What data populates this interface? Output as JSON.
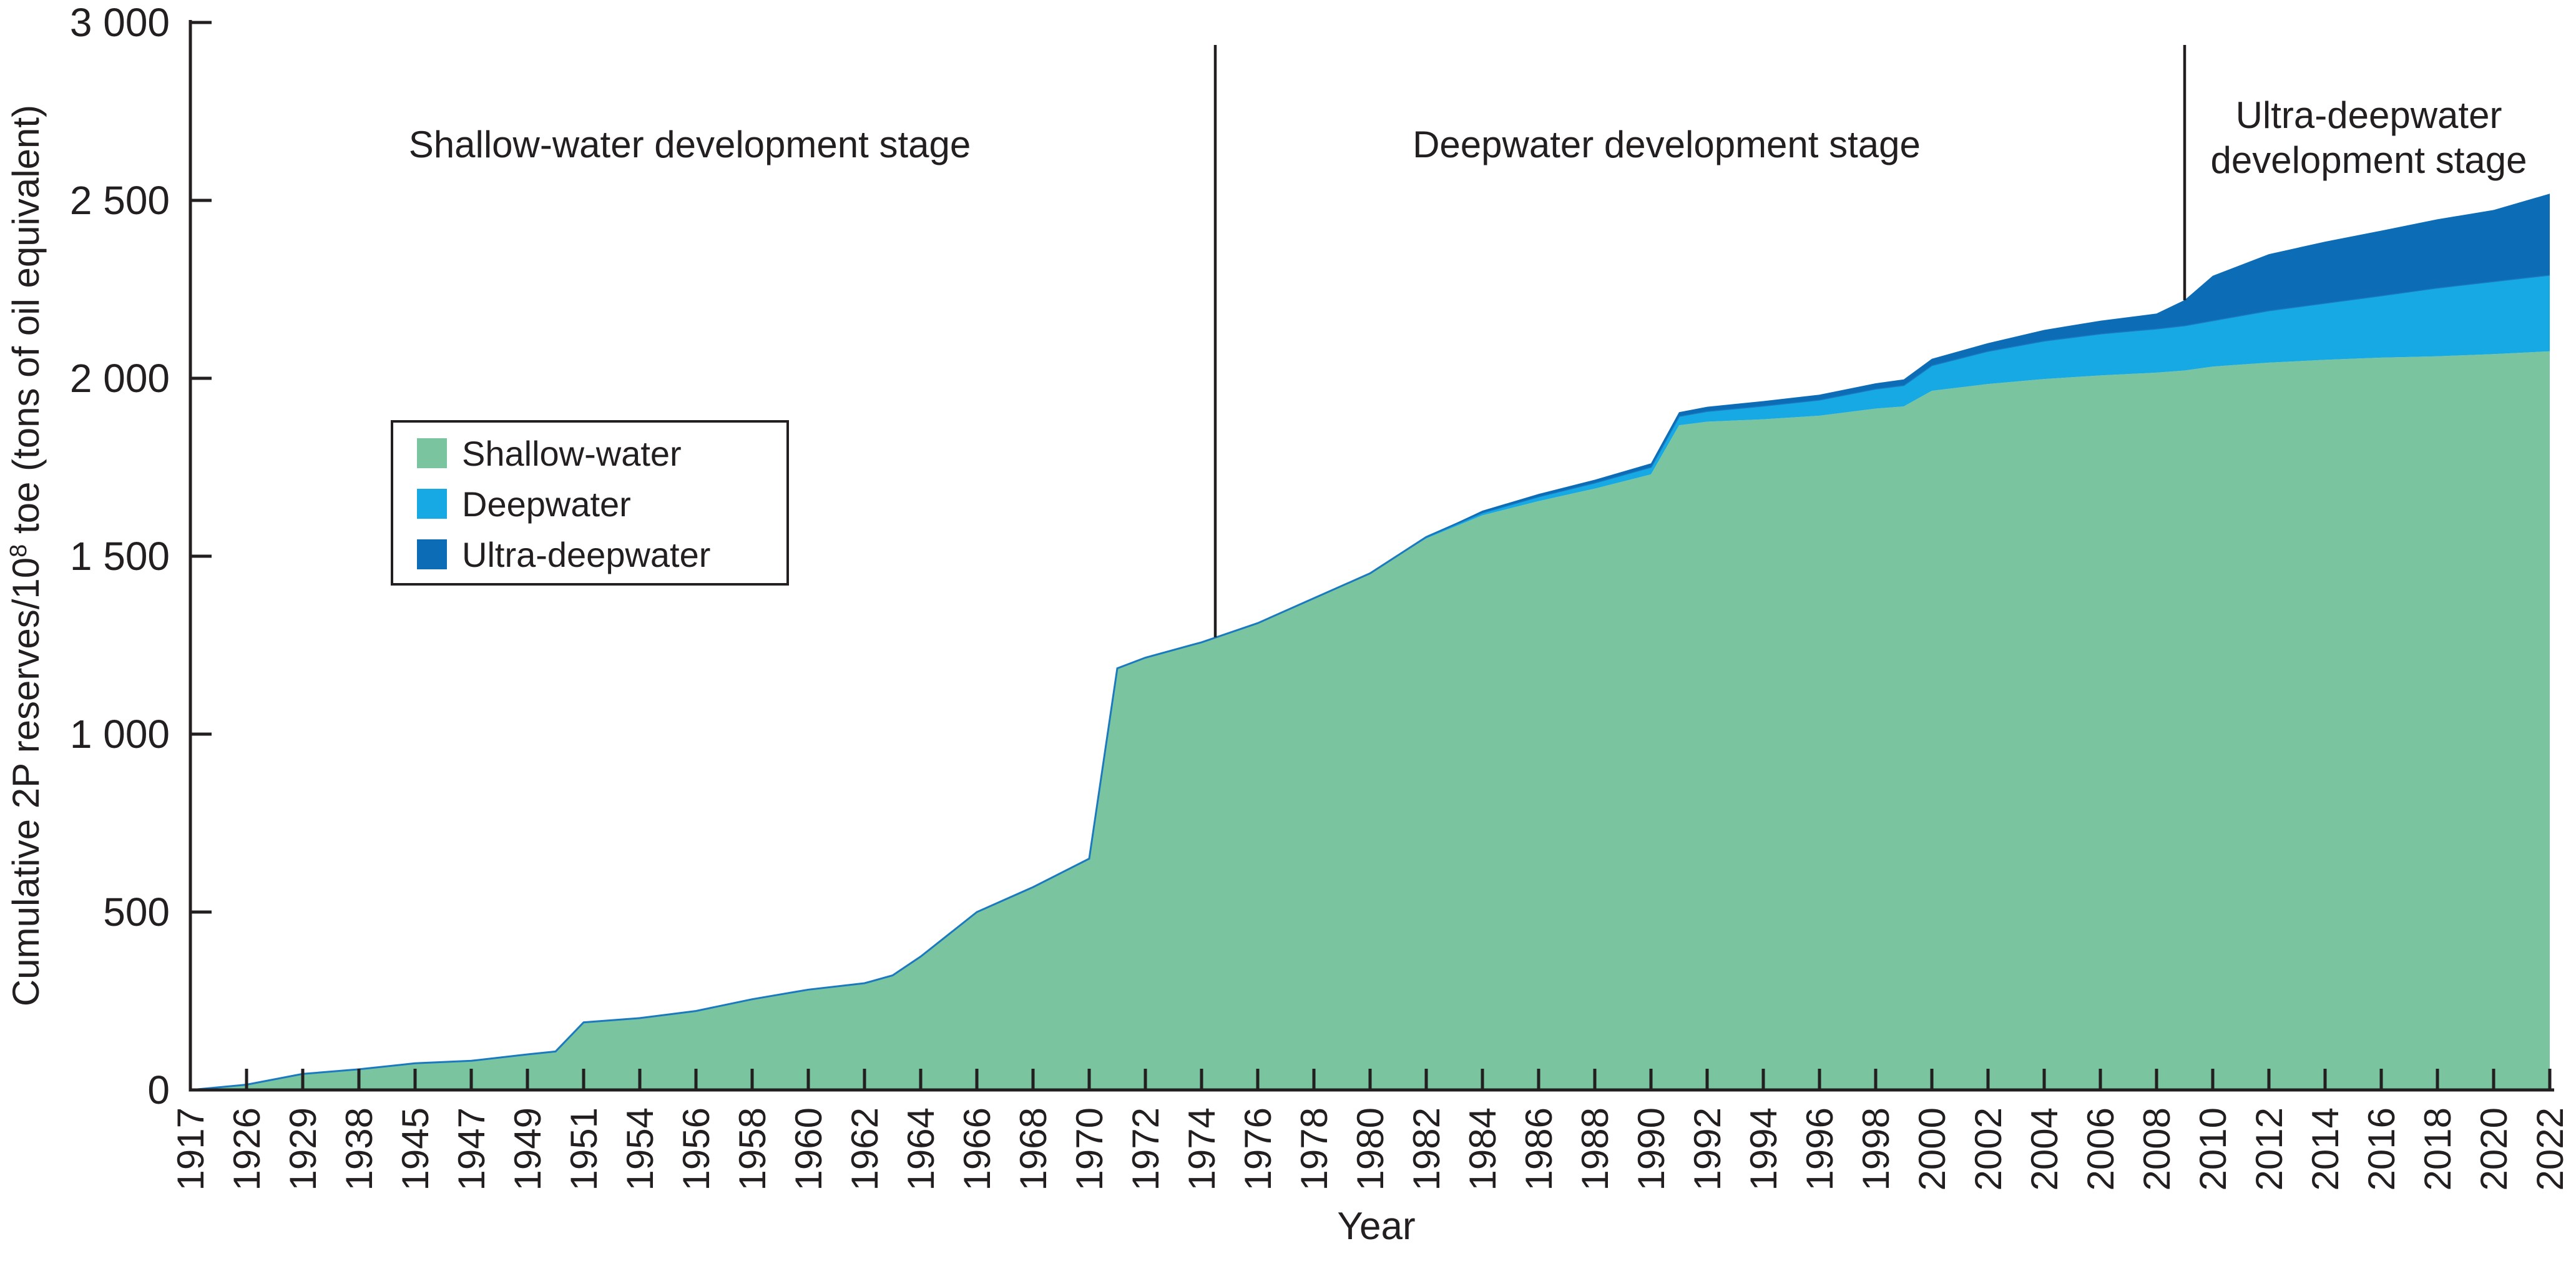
{
  "figure": {
    "background": "#FFFFFF",
    "text_color": "#231F20",
    "axis_color": "#231F20"
  },
  "chart_data": {
    "type": "area",
    "stacked": true,
    "title": "",
    "xlabel": "Year",
    "ylabel_prefix": "Cumulative 2P reserves/10",
    "ylabel_sup": "8",
    "ylabel_suffix": " toe (tons of oil equivalent)",
    "ylim": [
      0,
      3000
    ],
    "grid": false,
    "legend_position": "inside-upper-left",
    "ytick_values": [
      0,
      500,
      1000,
      1500,
      2000,
      2500,
      3000
    ],
    "ytick_labels": [
      "0",
      "500",
      "1 000",
      "1 500",
      "2 000",
      "2 500",
      "3 000"
    ],
    "x_categories": [
      "1917",
      "1926",
      "1929",
      "1938",
      "1945",
      "1947",
      "1949",
      "1951",
      "1954",
      "1956",
      "1958",
      "1960",
      "1962",
      "1964",
      "1966",
      "1968",
      "1970",
      "1972",
      "1974",
      "1976",
      "1978",
      "1980",
      "1982",
      "1984",
      "1986",
      "1988",
      "1990",
      "1992",
      "1994",
      "1996",
      "1998",
      "2000",
      "2002",
      "2004",
      "2006",
      "2008",
      "2010",
      "2012",
      "2014",
      "2016",
      "2018",
      "2020",
      "2022"
    ],
    "series": [
      {
        "name": "Shallow-water",
        "color": "#7AC5A0",
        "edge": "#1B79C0"
      },
      {
        "name": "Deepwater",
        "color": "#16A9E4",
        "edge": "#1B79C0"
      },
      {
        "name": "Ultra-deepwater",
        "color": "#0D6CB6",
        "edge": "#0D6CB6"
      }
    ],
    "legend": {
      "items": [
        {
          "label": "Shallow-water",
          "color": "#7AC5A0"
        },
        {
          "label": "Deepwater",
          "color": "#16A9E4"
        },
        {
          "label": "Ultra-deepwater",
          "color": "#0D6CB6"
        }
      ]
    },
    "points_format": [
      "x_index",
      "year",
      "shallow_water",
      "deepwater",
      "ultra_deepwater"
    ],
    "points": [
      [
        0,
        "1917",
        0,
        0,
        0
      ],
      [
        1,
        "1926",
        15,
        0,
        0
      ],
      [
        2,
        "1929",
        45,
        0,
        0
      ],
      [
        3,
        "1938",
        58,
        0,
        0
      ],
      [
        4,
        "1945",
        75,
        0,
        0
      ],
      [
        5,
        "1947",
        82,
        0,
        0
      ],
      [
        6,
        "1949",
        100,
        0,
        0
      ],
      [
        6.5,
        "1950",
        108,
        0,
        0
      ],
      [
        7,
        "1951",
        190,
        0,
        0
      ],
      [
        8,
        "1954",
        202,
        0,
        0
      ],
      [
        9,
        "1956",
        222,
        0,
        0
      ],
      [
        10,
        "1958",
        255,
        0,
        0
      ],
      [
        11,
        "1960",
        282,
        0,
        0
      ],
      [
        12,
        "1962",
        300,
        0,
        0
      ],
      [
        12.5,
        "1963",
        322,
        0,
        0
      ],
      [
        13,
        "1964",
        375,
        0,
        0
      ],
      [
        14,
        "1966",
        500,
        0,
        0
      ],
      [
        15,
        "1968",
        570,
        0,
        0
      ],
      [
        16,
        "1970",
        650,
        0,
        0
      ],
      [
        16.5,
        "1971",
        1185,
        0,
        0
      ],
      [
        17,
        "1972",
        1215,
        0,
        0
      ],
      [
        18,
        "1974",
        1258,
        0,
        0
      ],
      [
        19,
        "1976",
        1312,
        0,
        0
      ],
      [
        20,
        "1978",
        1382,
        0,
        0
      ],
      [
        21,
        "1980",
        1452,
        0,
        0
      ],
      [
        22,
        "1982",
        1550,
        4,
        0
      ],
      [
        23,
        "1984",
        1615,
        8,
        5
      ],
      [
        24,
        "1986",
        1655,
        13,
        7
      ],
      [
        25,
        "1988",
        1690,
        17,
        8
      ],
      [
        26,
        "1990",
        1730,
        21,
        10
      ],
      [
        26.5,
        "1991",
        1868,
        26,
        11
      ],
      [
        27,
        "1992",
        1878,
        30,
        12
      ],
      [
        28,
        "1994",
        1885,
        38,
        13
      ],
      [
        29,
        "1996",
        1895,
        45,
        14
      ],
      [
        30,
        "1998",
        1915,
        56,
        15
      ],
      [
        30.5,
        "1999",
        1921,
        60,
        16
      ],
      [
        31,
        "2000",
        1965,
        72,
        18
      ],
      [
        32,
        "2002",
        1984,
        93,
        22
      ],
      [
        33,
        "2004",
        1998,
        108,
        30
      ],
      [
        34,
        "2006",
        2008,
        118,
        36
      ],
      [
        35,
        "2008",
        2016,
        124,
        42
      ],
      [
        35.5,
        "2009",
        2022,
        127,
        71
      ],
      [
        36,
        "2010",
        2033,
        130,
        125
      ],
      [
        37,
        "2012",
        2044,
        147,
        158
      ],
      [
        38,
        "2014",
        2052,
        160,
        172
      ],
      [
        39,
        "2016",
        2058,
        175,
        182
      ],
      [
        40,
        "2018",
        2062,
        193,
        192
      ],
      [
        41,
        "2020",
        2068,
        205,
        200
      ],
      [
        42,
        "2022",
        2076,
        215,
        228
      ]
    ],
    "annotations": {
      "stages": [
        {
          "id": "shallow",
          "x": 1105,
          "y": 232,
          "lines": [
            "Shallow-water development stage"
          ]
        },
        {
          "id": "deepwater",
          "x": 2670,
          "y": 232,
          "lines": [
            "Deepwater development stage"
          ]
        },
        {
          "id": "ultra-deepwater",
          "x": 3795,
          "y": 185,
          "lines": [
            "Ultra-deepwater",
            "development stage"
          ]
        }
      ],
      "dividers": [
        {
          "id": "shallow-deepwater-boundary",
          "x": 1947,
          "y1": 72,
          "y2": 1021
        },
        {
          "id": "deepwater-ultra-boundary",
          "x": 3500,
          "y1": 72,
          "y2": 481
        }
      ]
    }
  }
}
